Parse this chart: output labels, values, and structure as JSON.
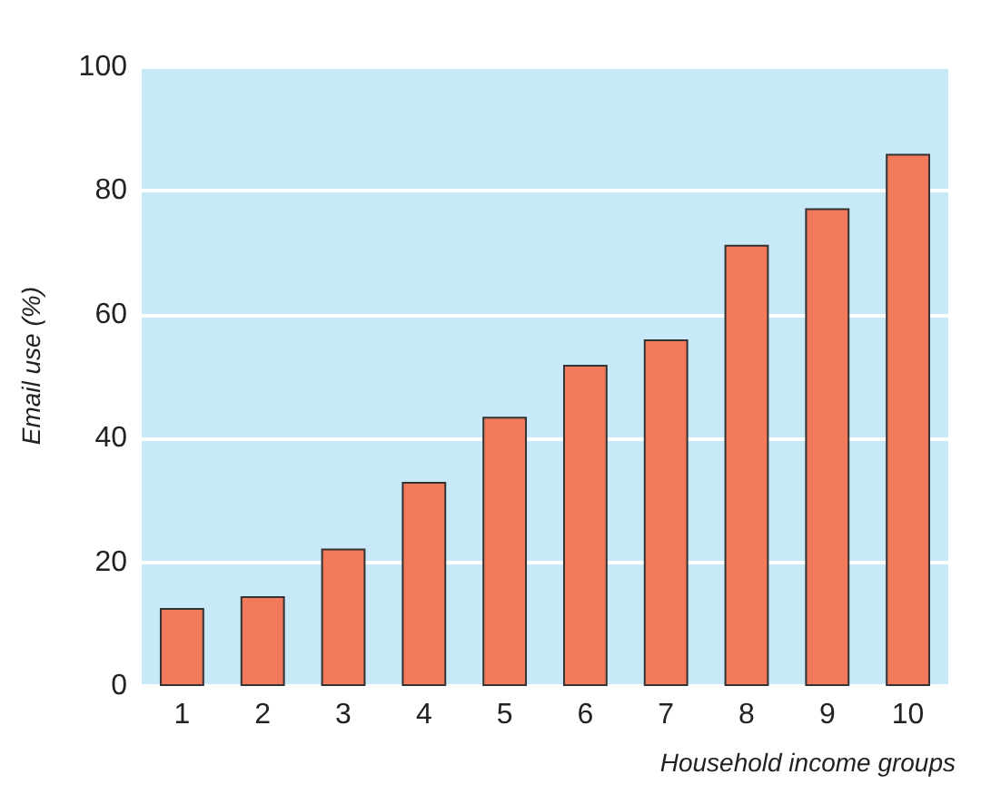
{
  "chart_data": {
    "type": "bar",
    "xlabel": "Household income groups",
    "ylabel": "Email use (%)",
    "categories": [
      "1",
      "2",
      "3",
      "4",
      "5",
      "6",
      "7",
      "8",
      "9",
      "10"
    ],
    "values": [
      12.6,
      14.5,
      22.2,
      33.0,
      43.5,
      51.9,
      56.0,
      71.3,
      77.2,
      86.0
    ],
    "color": "#f07a5a",
    "ylim": [
      0,
      100
    ],
    "yticks": [
      0,
      20,
      40,
      60,
      80,
      100
    ],
    "grid": "y"
  }
}
